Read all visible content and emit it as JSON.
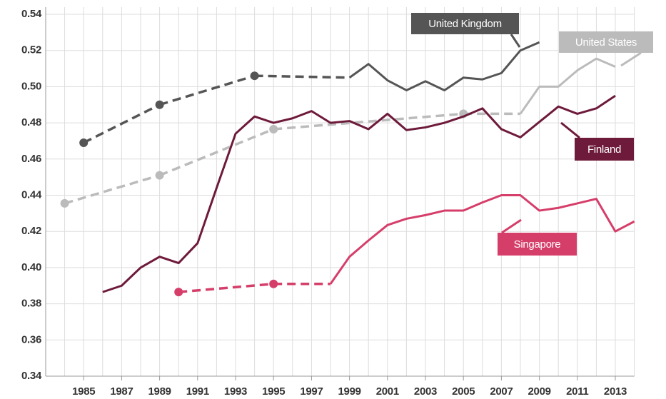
{
  "chart_data": {
    "type": "line",
    "x": [
      1984,
      1985,
      1986,
      1987,
      1988,
      1989,
      1990,
      1991,
      1992,
      1993,
      1994,
      1995,
      1996,
      1997,
      1998,
      1999,
      2000,
      2001,
      2002,
      2003,
      2004,
      2005,
      2006,
      2007,
      2008,
      2009,
      2010,
      2011,
      2012,
      2013,
      2014
    ],
    "xlim": [
      1983,
      2014
    ],
    "xticks": [
      1985,
      1987,
      1989,
      1991,
      1993,
      1995,
      1997,
      1999,
      2001,
      2003,
      2005,
      2007,
      2009,
      2011,
      2013
    ],
    "ylim": [
      0.34,
      0.54
    ],
    "yticks": [
      0.34,
      0.36,
      0.38,
      {
        "value": 0.4,
        "label": "0.40"
      },
      0.42,
      0.44,
      0.46,
      0.48,
      {
        "value": 0.5,
        "label": "0.50"
      },
      0.52,
      0.54
    ],
    "grid": true,
    "series": [
      {
        "name": "United Kingdom",
        "color": "#555555",
        "values": [
          null,
          0.469,
          null,
          null,
          null,
          0.49,
          null,
          null,
          null,
          null,
          0.506,
          null,
          null,
          null,
          null,
          0.505,
          0.5125,
          0.5035,
          0.498,
          0.503,
          0.498,
          0.505,
          0.504,
          0.5075,
          0.52,
          0.5245,
          null,
          null,
          null,
          null,
          null
        ]
      },
      {
        "name": "United States",
        "color": "#bbbbbb",
        "values": [
          0.4355,
          null,
          null,
          null,
          null,
          0.451,
          null,
          null,
          null,
          null,
          null,
          0.4765,
          null,
          null,
          null,
          null,
          null,
          null,
          null,
          null,
          null,
          0.485,
          null,
          null,
          0.485,
          0.5,
          0.5,
          0.509,
          0.5155,
          0.511,
          null
        ]
      },
      {
        "name": "Finland",
        "color": "#6e1a3a",
        "values": [
          null,
          null,
          0.3865,
          0.39,
          0.4,
          0.406,
          0.4025,
          0.4135,
          0.444,
          0.474,
          0.4835,
          0.48,
          0.4825,
          0.4865,
          0.48,
          0.481,
          0.4765,
          0.485,
          0.476,
          0.4775,
          0.48,
          0.4835,
          0.488,
          0.4765,
          0.472,
          0.4805,
          0.489,
          0.485,
          0.488,
          0.495,
          null
        ]
      },
      {
        "name": "Singapore",
        "color": "#d63e6a",
        "values": [
          null,
          null,
          null,
          null,
          null,
          null,
          0.3865,
          null,
          null,
          null,
          null,
          0.391,
          null,
          null,
          0.391,
          0.406,
          0.415,
          0.4235,
          0.427,
          0.429,
          0.4315,
          0.4315,
          0.436,
          0.44,
          0.44,
          0.4315,
          0.433,
          0.4355,
          0.438,
          0.42,
          0.4255
        ]
      }
    ]
  }
}
